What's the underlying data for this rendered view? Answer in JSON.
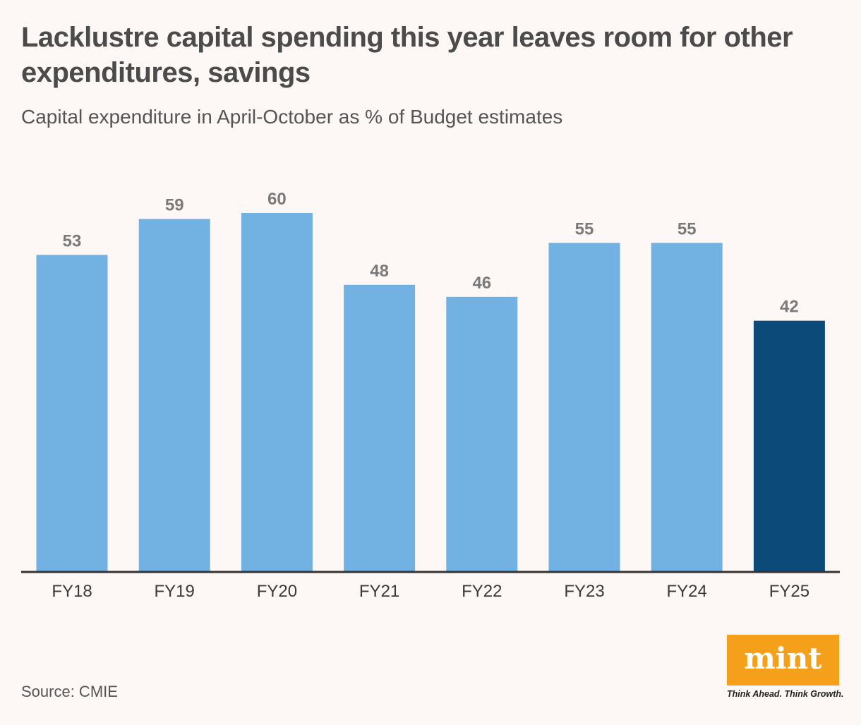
{
  "header": {
    "title": "Lacklustre capital spending this year leaves room for other expenditures, savings",
    "subtitle": "Capital expenditure in April-October as % of Budget estimates"
  },
  "footer": {
    "source": "Source: CMIE"
  },
  "brand": {
    "logo_text": "mint",
    "tagline": "Think Ahead. Think Growth.",
    "logo_color": "#f5a01a"
  },
  "colors": {
    "bar_default": "#72b2e2",
    "bar_highlight": "#0c4a7a",
    "value_label": "#7a7a7a",
    "axis": "#333333"
  },
  "chart_data": {
    "type": "bar",
    "title": "Lacklustre capital spending this year leaves room for other expenditures, savings",
    "subtitle": "Capital expenditure in April-October as % of Budget estimates",
    "xlabel": "",
    "ylabel": "",
    "categories": [
      "FY18",
      "FY19",
      "FY20",
      "FY21",
      "FY22",
      "FY23",
      "FY24",
      "FY25"
    ],
    "values": [
      53,
      59,
      60,
      48,
      46,
      55,
      55,
      42
    ],
    "value_labels": [
      "53",
      "59",
      "60",
      "48",
      "46",
      "55",
      "55",
      "42"
    ],
    "highlight_category": "FY25",
    "ylim": [
      0,
      60
    ],
    "grid": false
  }
}
